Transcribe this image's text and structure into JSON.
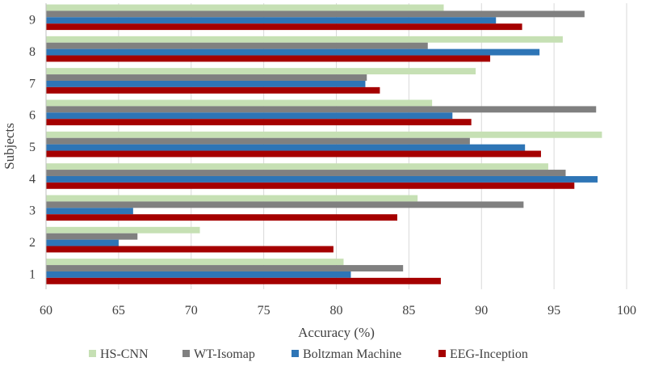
{
  "chart_data": {
    "type": "bar",
    "orientation": "horizontal",
    "categories": [
      "1",
      "2",
      "3",
      "4",
      "5",
      "6",
      "7",
      "8",
      "9"
    ],
    "xlabel": "Accuracy (%)",
    "ylabel": "Subjects",
    "xlim": [
      60,
      100
    ],
    "xticks": [
      60,
      65,
      70,
      75,
      80,
      85,
      90,
      95,
      100
    ],
    "grid": "vertical",
    "legend_position": "bottom",
    "series": [
      {
        "name": "HS-CNN",
        "color": "#c6e0b4",
        "values": [
          80.5,
          70.6,
          85.6,
          94.6,
          98.3,
          86.6,
          89.6,
          95.6,
          87.4
        ]
      },
      {
        "name": "WT-Isomap",
        "color": "#808080",
        "values": [
          84.6,
          66.3,
          92.9,
          95.8,
          89.2,
          97.9,
          82.1,
          86.3,
          97.1
        ]
      },
      {
        "name": "Boltzman Machine",
        "color": "#2e75b6",
        "values": [
          81.0,
          65.0,
          66.0,
          98.0,
          93.0,
          88.0,
          82.0,
          94.0,
          91.0
        ]
      },
      {
        "name": "EEG-Inception",
        "color": "#a50000",
        "values": [
          87.2,
          79.8,
          84.2,
          96.4,
          94.1,
          89.3,
          83.0,
          90.6,
          92.8
        ]
      }
    ]
  }
}
